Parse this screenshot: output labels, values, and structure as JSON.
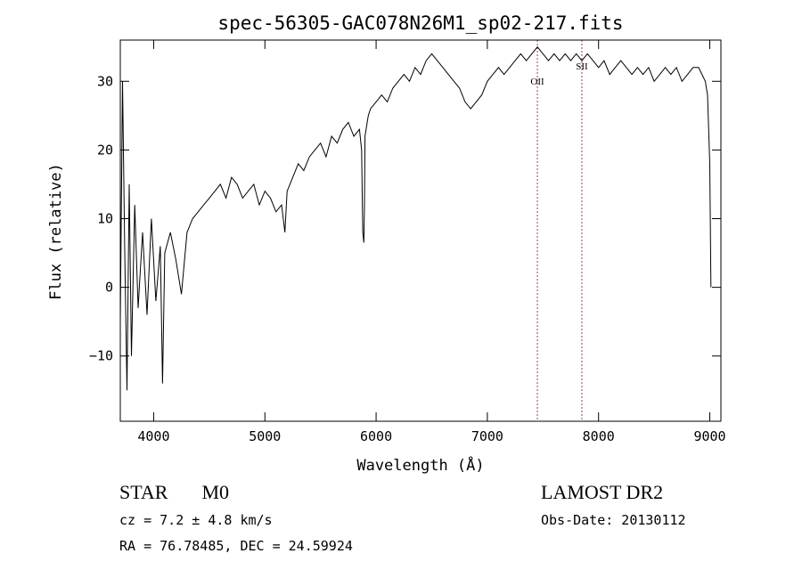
{
  "chart_data": {
    "type": "line",
    "title": "spec-56305-GAC078N26M1_sp02-217.fits",
    "xlabel": "Wavelength (Å)",
    "ylabel": "Flux (relative)",
    "xlim": [
      3700,
      9100
    ],
    "ylim": [
      -19.5,
      36
    ],
    "x_ticks": [
      4000,
      5000,
      6000,
      7000,
      8000,
      9000
    ],
    "y_ticks": [
      -10,
      0,
      10,
      20,
      30
    ],
    "grid": false,
    "series": [
      {
        "color": "#000000",
        "x": [
          3700,
          3720,
          3740,
          3760,
          3780,
          3800,
          3830,
          3860,
          3900,
          3940,
          3980,
          4020,
          4060,
          4080,
          4100,
          4150,
          4200,
          4250,
          4300,
          4350,
          4400,
          4450,
          4500,
          4550,
          4600,
          4650,
          4700,
          4750,
          4800,
          4850,
          4900,
          4950,
          5000,
          5050,
          5100,
          5150,
          5180,
          5200,
          5250,
          5300,
          5350,
          5400,
          5450,
          5500,
          5550,
          5600,
          5650,
          5700,
          5750,
          5800,
          5850,
          5870,
          5880,
          5890,
          5895,
          5900,
          5910,
          5930,
          5950,
          6000,
          6050,
          6100,
          6150,
          6200,
          6250,
          6300,
          6350,
          6400,
          6450,
          6500,
          6550,
          6600,
          6650,
          6700,
          6750,
          6800,
          6850,
          6900,
          6950,
          7000,
          7050,
          7100,
          7150,
          7200,
          7250,
          7300,
          7350,
          7400,
          7450,
          7500,
          7550,
          7600,
          7650,
          7700,
          7750,
          7800,
          7850,
          7900,
          7950,
          8000,
          8050,
          8100,
          8150,
          8200,
          8250,
          8300,
          8350,
          8400,
          8450,
          8500,
          8550,
          8600,
          8650,
          8700,
          8750,
          8800,
          8850,
          8900,
          8930,
          8960,
          8980,
          9000,
          9010
        ],
        "y": [
          -5,
          30,
          5,
          -15,
          15,
          -10,
          12,
          -3,
          8,
          -4,
          10,
          -2,
          6,
          -14,
          5,
          8,
          4,
          -1,
          8,
          10,
          11,
          12,
          13,
          14,
          15,
          13,
          16,
          15,
          13,
          14,
          15,
          12,
          14,
          13,
          11,
          12,
          8,
          14,
          16,
          18,
          17,
          19,
          20,
          21,
          19,
          22,
          21,
          23,
          24,
          22,
          23,
          20,
          8,
          6.5,
          12,
          22,
          23,
          25,
          26,
          27,
          28,
          27,
          29,
          30,
          31,
          30,
          32,
          31,
          33,
          34,
          33,
          32,
          31,
          30,
          29,
          27,
          26,
          27,
          28,
          30,
          31,
          32,
          31,
          32,
          33,
          34,
          33,
          34,
          35,
          34,
          33,
          34,
          33,
          34,
          33,
          34,
          33,
          34,
          33,
          32,
          33,
          31,
          32,
          33,
          32,
          31,
          32,
          31,
          32,
          30,
          31,
          32,
          31,
          32,
          30,
          31,
          32,
          32,
          31,
          30,
          28,
          18,
          0
        ]
      }
    ],
    "annotations": [
      {
        "label": "OII",
        "x": 7450
      },
      {
        "label": "SII",
        "x": 7850
      }
    ]
  },
  "info": {
    "class": "STAR",
    "subclass": "M0",
    "cz": "cz = 7.2 ± 4.8 km/s",
    "coords": "RA =  76.78485, DEC =  24.59924",
    "survey": "LAMOST DR2",
    "obs_date": "Obs-Date: 20130112"
  }
}
